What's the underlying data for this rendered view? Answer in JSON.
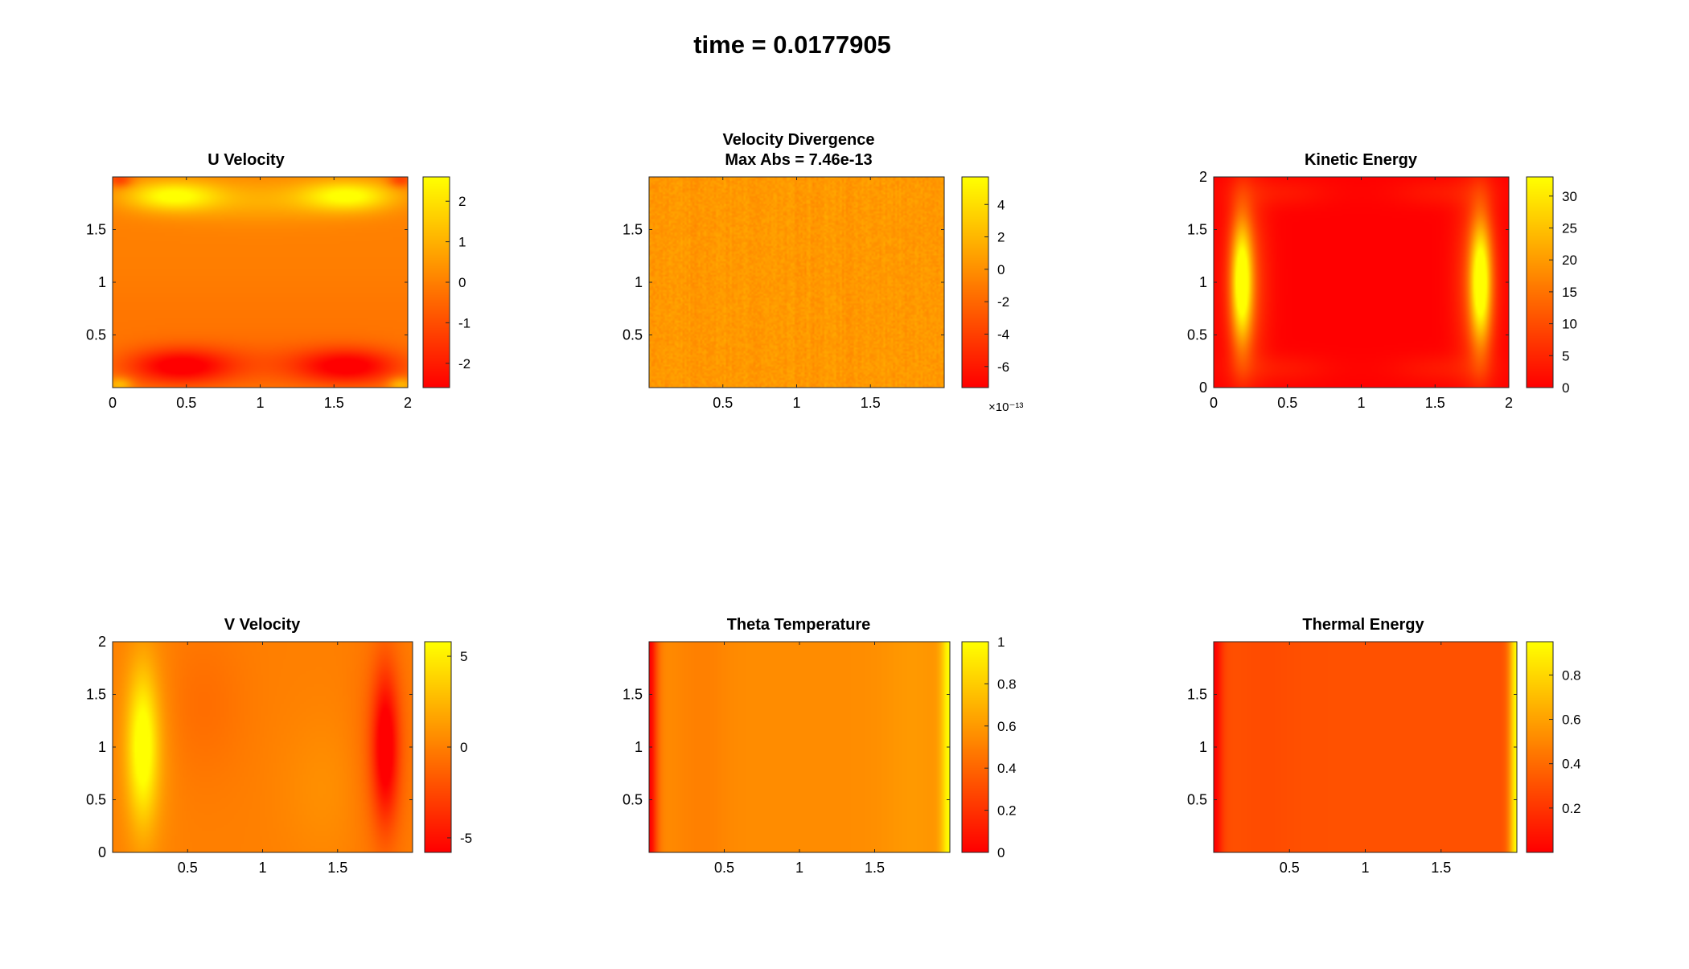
{
  "figure": {
    "suptitle": "time = 0.0177905"
  },
  "colormap": "autumn",
  "chart_data": [
    {
      "type": "heatmap",
      "title": "U Velocity",
      "xlim": [
        0,
        2
      ],
      "ylim": [
        0,
        2
      ],
      "xticks": [
        0,
        0.5,
        1,
        1.5,
        2
      ],
      "xticklabels": [
        "0",
        "0.5",
        "1",
        "1.5",
        "2"
      ],
      "yticks": [
        0.5,
        1,
        1.5
      ],
      "yticklabels": [
        "0.5",
        "1",
        "1.5"
      ],
      "clim": [
        -2.6,
        2.6
      ],
      "cticks": [
        -2,
        -1,
        0,
        1,
        2
      ],
      "cticklabels": [
        "-2",
        "-1",
        "0",
        "1",
        "2"
      ],
      "field": "u_velocity"
    },
    {
      "type": "heatmap",
      "title": [
        "Velocity Divergence",
        "Max Abs = 7.46e-13"
      ],
      "xlim": [
        0,
        2
      ],
      "ylim": [
        0,
        2
      ],
      "xticks": [
        0.5,
        1,
        1.5
      ],
      "xticklabels": [
        "0.5",
        "1",
        "1.5"
      ],
      "yticks": [
        0.5,
        1,
        1.5
      ],
      "yticklabels": [
        "0.5",
        "1",
        "1.5"
      ],
      "clim": [
        -7.3,
        5.7
      ],
      "cticks": [
        -6,
        -4,
        -2,
        0,
        2,
        4
      ],
      "cticklabels": [
        "-6",
        "-4",
        "-2",
        "0",
        "2",
        "4"
      ],
      "cexponent": "×10⁻¹³",
      "field": "divergence_noise"
    },
    {
      "type": "heatmap",
      "title": "Kinetic Energy",
      "xlim": [
        0,
        2
      ],
      "ylim": [
        0,
        2
      ],
      "xticks": [
        0,
        0.5,
        1,
        1.5,
        2
      ],
      "xticklabels": [
        "0",
        "0.5",
        "1",
        "1.5",
        "2"
      ],
      "yticks": [
        0,
        0.5,
        1,
        1.5,
        2
      ],
      "yticklabels": [
        "0",
        "0.5",
        "1",
        "1.5",
        "2"
      ],
      "clim": [
        0,
        33
      ],
      "cticks": [
        0,
        5,
        10,
        15,
        20,
        25,
        30
      ],
      "cticklabels": [
        "0",
        "5",
        "10",
        "15",
        "20",
        "25",
        "30"
      ],
      "field": "kinetic_energy"
    },
    {
      "type": "heatmap",
      "title": "V Velocity",
      "xlim": [
        0,
        2
      ],
      "ylim": [
        0,
        2
      ],
      "xticks": [
        0.5,
        1,
        1.5
      ],
      "xticklabels": [
        "0.5",
        "1",
        "1.5"
      ],
      "yticks": [
        0,
        0.5,
        1,
        1.5,
        2
      ],
      "yticklabels": [
        "0",
        "0.5",
        "1",
        "1.5",
        "2"
      ],
      "clim": [
        -5.8,
        5.8
      ],
      "cticks": [
        -5,
        0,
        5
      ],
      "cticklabels": [
        "-5",
        "0",
        "5"
      ],
      "field": "v_velocity"
    },
    {
      "type": "heatmap",
      "title": "Theta Temperature",
      "xlim": [
        0,
        2
      ],
      "ylim": [
        0,
        2
      ],
      "xticks": [
        0.5,
        1,
        1.5
      ],
      "xticklabels": [
        "0.5",
        "1",
        "1.5"
      ],
      "yticks": [
        0.5,
        1,
        1.5
      ],
      "yticklabels": [
        "0.5",
        "1",
        "1.5"
      ],
      "clim": [
        0,
        1
      ],
      "cticks": [
        0,
        0.2,
        0.4,
        0.6,
        0.8,
        1
      ],
      "cticklabels": [
        "0",
        "0.2",
        "0.4",
        "0.6",
        "0.8",
        "1"
      ],
      "field": "temperature"
    },
    {
      "type": "heatmap",
      "title": "Thermal Energy",
      "xlim": [
        0,
        2
      ],
      "ylim": [
        0,
        2
      ],
      "xticks": [
        0.5,
        1,
        1.5
      ],
      "xticklabels": [
        "0.5",
        "1",
        "1.5"
      ],
      "yticks": [
        0.5,
        1,
        1.5
      ],
      "yticklabels": [
        "0.5",
        "1",
        "1.5"
      ],
      "clim": [
        0,
        0.95
      ],
      "cticks": [
        0.2,
        0.4,
        0.6,
        0.8
      ],
      "cticklabels": [
        "0.2",
        "0.4",
        "0.6",
        "0.8"
      ],
      "field": "thermal_energy"
    }
  ]
}
